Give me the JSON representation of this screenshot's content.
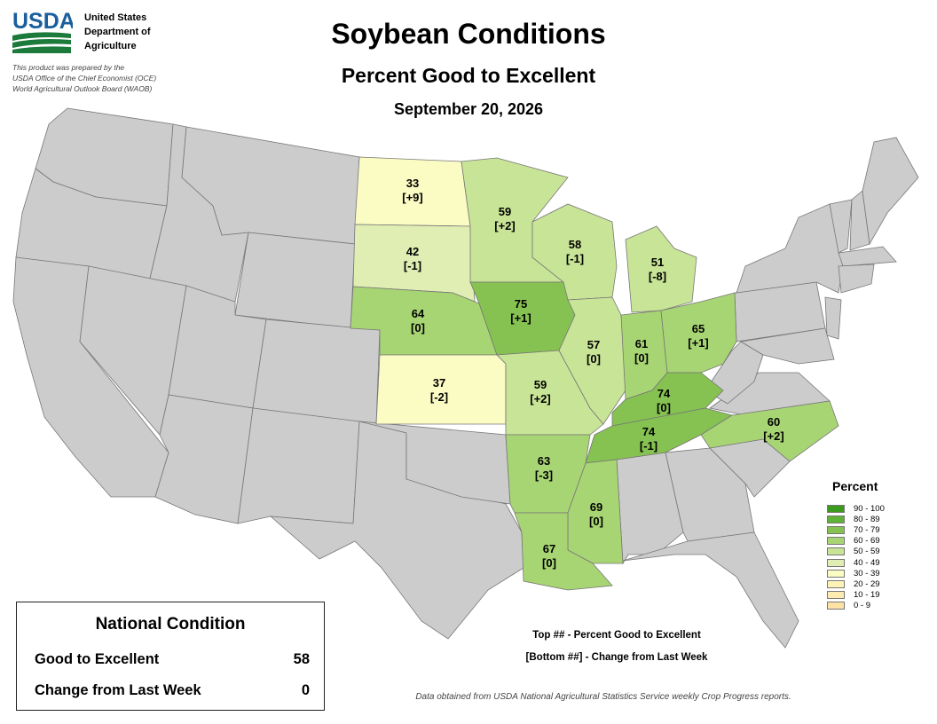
{
  "header": {
    "logo_text": "USDA",
    "agency_lines": [
      "United States",
      "Department of",
      "Agriculture"
    ],
    "disclaimer_lines": [
      "This product was prepared by the",
      "USDA Office of the Chief Economist (OCE)",
      "World Agricultural Outlook Board (WAOB)"
    ],
    "title": "Soybean Conditions",
    "subtitle": "Percent Good to Excellent",
    "date": "September 20, 2026"
  },
  "colors": {
    "no_data_state": "#cccccc",
    "state_border": "#777777",
    "ocean_line": "#888888"
  },
  "states": {
    "ND": {
      "value": "33",
      "change": "[+9]"
    },
    "SD": {
      "value": "42",
      "change": "[-1]"
    },
    "MN": {
      "value": "59",
      "change": "[+2]"
    },
    "WI": {
      "value": "58",
      "change": "[-1]"
    },
    "MI": {
      "value": "51",
      "change": "[-8]"
    },
    "NE": {
      "value": "64",
      "change": "[0]"
    },
    "IA": {
      "value": "75",
      "change": "[+1]"
    },
    "IL": {
      "value": "57",
      "change": "[0]"
    },
    "IN": {
      "value": "61",
      "change": "[0]"
    },
    "OH": {
      "value": "65",
      "change": "[+1]"
    },
    "KS": {
      "value": "37",
      "change": "[-2]"
    },
    "MO": {
      "value": "59",
      "change": "[+2]"
    },
    "KY": {
      "value": "74",
      "change": "[0]"
    },
    "TN": {
      "value": "74",
      "change": "[-1]"
    },
    "NC": {
      "value": "60",
      "change": "[+2]"
    },
    "AR": {
      "value": "63",
      "change": "[-3]"
    },
    "MS": {
      "value": "69",
      "change": "[0]"
    },
    "LA": {
      "value": "67",
      "change": "[0]"
    }
  },
  "legend": {
    "title": "Percent",
    "items": [
      {
        "label": "90 - 100",
        "color": "#3c9a1c"
      },
      {
        "label": "80 - 89",
        "color": "#5fb337"
      },
      {
        "label": "70 - 79",
        "color": "#86c251"
      },
      {
        "label": "60 - 69",
        "color": "#a8d574"
      },
      {
        "label": "50 - 59",
        "color": "#c8e496"
      },
      {
        "label": "40 - 49",
        "color": "#e0eeb4"
      },
      {
        "label": "30 - 39",
        "color": "#fbfbc4"
      },
      {
        "label": "20 - 29",
        "color": "#fdf3b8"
      },
      {
        "label": "10 - 19",
        "color": "#fdebb2"
      },
      {
        "label": "0 - 9",
        "color": "#fde2a6"
      }
    ]
  },
  "national": {
    "title": "National Condition",
    "good_label": "Good to Excellent",
    "good_value": "58",
    "change_label": "Change from Last Week",
    "change_value": "0"
  },
  "key_notes": {
    "top": "Top ## - Percent Good to Excellent",
    "bottom": "[Bottom ##] - Change from Last Week"
  },
  "source_note": "Data obtained from USDA National Agricultural Statistics Service weekly Crop Progress reports."
}
